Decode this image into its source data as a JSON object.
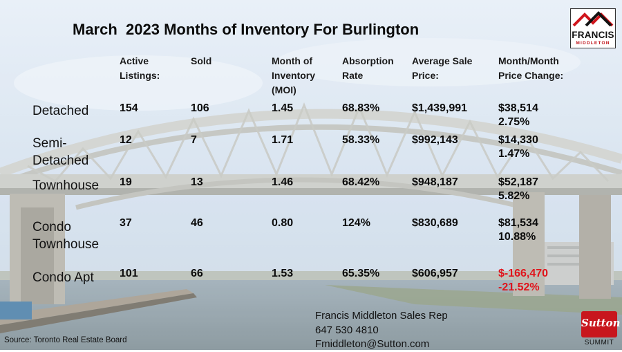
{
  "title": "March  2023 Months of Inventory For Burlington",
  "headers": {
    "active": "Active\nListings:",
    "sold": "Sold",
    "moi": "Month of\nInventory\n(MOI)",
    "absorption": "Absorption\nRate",
    "avg_price": "Average Sale\nPrice:",
    "change": "Month/Month\nPrice Change:"
  },
  "rows": [
    {
      "label": "Detached",
      "active": "154",
      "sold": "106",
      "moi": "1.45",
      "absorption": "68.83%",
      "avg_price": "$1,439,991",
      "change": "$38,514\n2.75%"
    },
    {
      "label": "Semi-\nDetached",
      "active": "12",
      "sold": "7",
      "moi": "1.71",
      "absorption": "58.33%",
      "avg_price": "$992,143",
      "change": "$14,330\n1.47%"
    },
    {
      "label": "Townhouse",
      "active": "19",
      "sold": "13",
      "moi": "1.46",
      "absorption": "68.42%",
      "avg_price": "$948,187",
      "change": "$52,187\n5.82%"
    },
    {
      "label": "Condo\nTownhouse",
      "active": "37",
      "sold": "46",
      "moi": "0.80",
      "absorption": "124%",
      "avg_price": "$830,689",
      "change": "$81,534\n10.88%"
    },
    {
      "label": "Condo Apt",
      "active": "101",
      "sold": "66",
      "moi": "1.53",
      "absorption": "65.35%",
      "avg_price": "$606,957",
      "change": "$-166,470\n-21.52%"
    }
  ],
  "contact": {
    "line1": "Francis Middleton Sales Rep",
    "line2": "647 530 4810",
    "line3": "Fmiddleton@Sutton.com"
  },
  "source": "Source: Toronto Real Estate Board",
  "logo_francis": {
    "name": "FRANCIS",
    "sub": "MIDDLETON"
  },
  "logo_sutton": {
    "name": "Sutton",
    "sub": "SUMMIT"
  },
  "colors": {
    "negative": "#e0141b",
    "brand_red": "#c8161d"
  }
}
